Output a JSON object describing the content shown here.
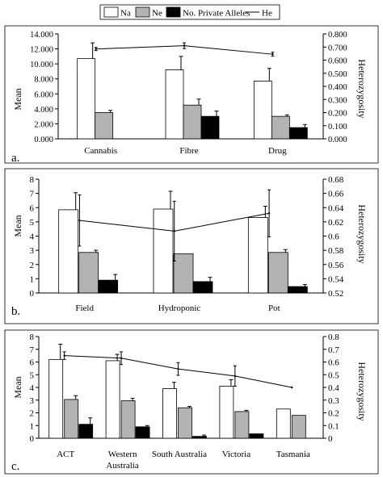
{
  "legend": {
    "items": [
      {
        "label": "Na",
        "color": "#ffffff",
        "kind": "box"
      },
      {
        "label": "Ne",
        "color": "#b3b3b3",
        "kind": "box"
      },
      {
        "label": "No. Private Alleles",
        "color": "#000000",
        "kind": "box"
      },
      {
        "label": "He",
        "color": "#000000",
        "kind": "line"
      }
    ]
  },
  "chart_data": [
    {
      "panel_label": "a.",
      "type": "bar",
      "categories": [
        "Cannabis",
        "Fibre",
        "Drug"
      ],
      "ylabel": "Mean",
      "y2label": "Heterozygosity",
      "ylim": [
        0,
        14
      ],
      "yticks": [
        "0.000",
        "2.000",
        "4.000",
        "6.000",
        "8.000",
        "10.000",
        "12.000",
        "14.000"
      ],
      "y2lim": [
        0,
        0.8
      ],
      "y2ticks": [
        "0.000",
        "0.100",
        "0.200",
        "0.300",
        "0.400",
        "0.500",
        "0.600",
        "0.700",
        "0.800"
      ],
      "grid": false,
      "legend_placement": "top",
      "series": [
        {
          "name": "Na",
          "color": "#ffffff",
          "values": [
            10.7,
            9.2,
            7.7
          ],
          "errors": [
            2.1,
            1.8,
            1.7
          ]
        },
        {
          "name": "Ne",
          "color": "#b3b3b3",
          "values": [
            3.5,
            4.5,
            3.0
          ],
          "errors": [
            0.3,
            0.8,
            0.2
          ]
        },
        {
          "name": "No. Private Alleles",
          "color": "#000000",
          "values": [
            0,
            3.0,
            1.5
          ],
          "errors": [
            0,
            0.7,
            0.4
          ]
        }
      ],
      "line_series": {
        "name": "He",
        "values": [
          0.685,
          0.71,
          0.645
        ],
        "errors": [
          0.012,
          0.022,
          0.015
        ]
      }
    },
    {
      "panel_label": "b.",
      "type": "bar",
      "categories": [
        "Field",
        "Hydroponic",
        "Pot"
      ],
      "ylabel": "Mean",
      "y2label": "Heterozygosity",
      "ylim": [
        0,
        8
      ],
      "yticks": [
        "0",
        "1",
        "2",
        "3",
        "4",
        "5",
        "6",
        "7",
        "8"
      ],
      "y2lim": [
        0.52,
        0.68
      ],
      "y2ticks": [
        "0.52",
        "0.54",
        "0.56",
        "0.58",
        "0.6",
        "0.62",
        "0.64",
        "0.66",
        "0.68"
      ],
      "grid": false,
      "series": [
        {
          "name": "Na",
          "color": "#ffffff",
          "values": [
            5.85,
            5.9,
            5.3
          ],
          "errors": [
            1.2,
            1.25,
            0.8
          ]
        },
        {
          "name": "Ne",
          "color": "#b3b3b3",
          "values": [
            2.85,
            2.75,
            2.85
          ],
          "errors": [
            0.15,
            0,
            0.2
          ]
        },
        {
          "name": "No. Private Alleles",
          "color": "#000000",
          "values": [
            0.9,
            0.8,
            0.45
          ],
          "errors": [
            0.4,
            0.3,
            0.15
          ]
        }
      ],
      "line_series": {
        "name": "He",
        "values": [
          0.622,
          0.607,
          0.632
        ],
        "errors": [
          0.036,
          0.042,
          0.033
        ]
      }
    },
    {
      "panel_label": "c.",
      "type": "bar",
      "categories": [
        "ACT",
        "Western Australia",
        "South Australia",
        "Victoria",
        "Tasmania"
      ],
      "ylabel": "Mean",
      "y2label": "Heterozygosity",
      "ylim": [
        0,
        8
      ],
      "yticks": [
        "0",
        "1",
        "2",
        "3",
        "4",
        "5",
        "6",
        "7",
        "8"
      ],
      "y2lim": [
        0,
        0.8
      ],
      "y2ticks": [
        "0",
        "0.1",
        "0.2",
        "0.3",
        "0.4",
        "0.5",
        "0.6",
        "0.7",
        "0.8"
      ],
      "grid": false,
      "series": [
        {
          "name": "Na",
          "color": "#ffffff",
          "values": [
            6.2,
            6.1,
            3.9,
            4.1,
            2.3
          ],
          "errors": [
            1.2,
            0.5,
            0.5,
            0.5,
            0
          ]
        },
        {
          "name": "Ne",
          "color": "#b3b3b3",
          "values": [
            3.05,
            2.95,
            2.4,
            2.1,
            1.8
          ],
          "errors": [
            0.3,
            0.2,
            0.1,
            0.1,
            0
          ]
        },
        {
          "name": "No. Private Alleles",
          "color": "#000000",
          "values": [
            1.1,
            0.9,
            0.15,
            0.35,
            0
          ],
          "errors": [
            0.5,
            0.1,
            0.1,
            0,
            0
          ]
        }
      ],
      "line_series": {
        "name": "He",
        "values": [
          0.65,
          0.63,
          0.545,
          0.49,
          0.4
        ],
        "errors": [
          0.03,
          0.05,
          0.05,
          0.08,
          0
        ]
      }
    }
  ]
}
